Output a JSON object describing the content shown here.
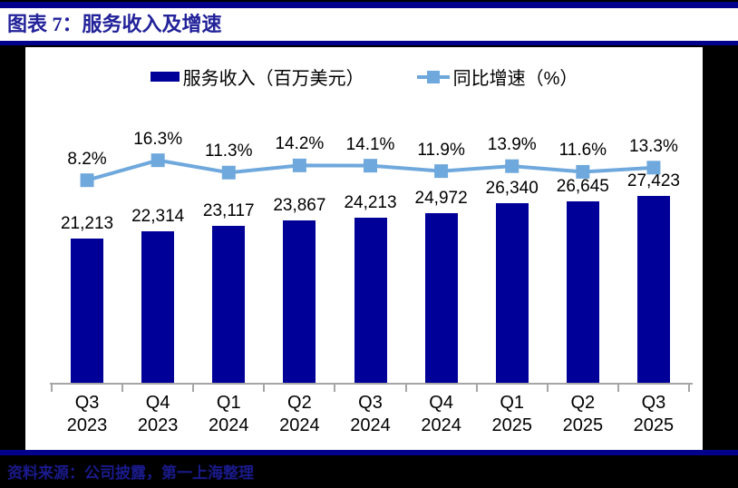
{
  "header": {
    "title": "图表 7：服务收入及增速"
  },
  "footer": {
    "source": "资料来源：公司披露，第一上海整理"
  },
  "legend": {
    "bar_label": "服务收入（百万美元）",
    "line_label": "同比增速（%）"
  },
  "colors": {
    "bar": "#000099",
    "line": "#6FA8DC",
    "rule_navy": "#00008B",
    "title_text": "#22229A",
    "footer_text": "#1A1A8C",
    "axis_gray": "#A6A6A6",
    "label_text": "#000000",
    "panel_bg": "#FFFFFF",
    "page_bg": "#000000"
  },
  "chart_data": {
    "type": "bar",
    "title": "图表 7：服务收入及增速",
    "categories": [
      "Q3 2023",
      "Q4 2023",
      "Q1 2024",
      "Q2 2024",
      "Q3 2024",
      "Q4 2024",
      "Q1 2025",
      "Q2 2025",
      "Q3 2025"
    ],
    "series": [
      {
        "name": "服务收入（百万美元）",
        "type": "bar",
        "values": [
          21213,
          22314,
          23117,
          23867,
          24213,
          24972,
          26340,
          26645,
          27423
        ],
        "labels": [
          "21,213",
          "22,314",
          "23,117",
          "23,867",
          "24,213",
          "24,972",
          "26,340",
          "26,645",
          "27,423"
        ]
      },
      {
        "name": "同比增速（%）",
        "type": "line",
        "values": [
          8.2,
          16.3,
          11.3,
          14.2,
          14.1,
          11.9,
          13.9,
          11.6,
          13.3
        ],
        "labels": [
          "8.2%",
          "16.3%",
          "11.3%",
          "14.2%",
          "14.1%",
          "11.9%",
          "13.9%",
          "11.6%",
          "13.3%"
        ]
      }
    ],
    "xlabel": "",
    "ylabel": "",
    "legend_position": "top",
    "grid": false,
    "value_axis_visible": false,
    "data_labels_visible": true
  }
}
